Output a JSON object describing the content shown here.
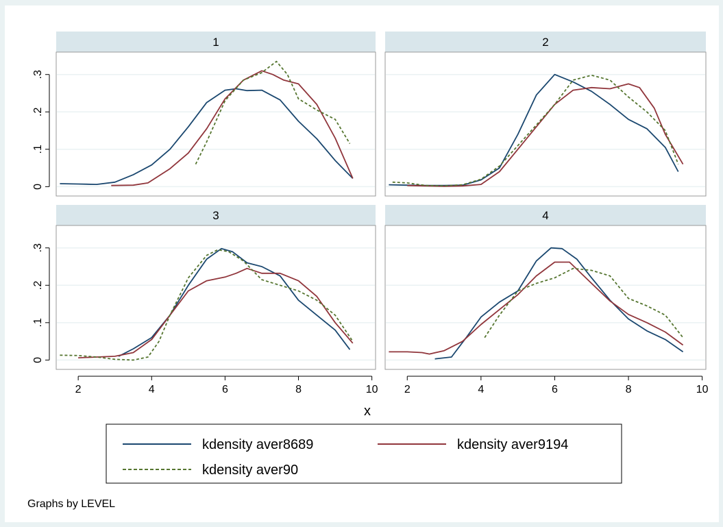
{
  "chart_data": {
    "type": "line",
    "panel_variable": "LEVEL",
    "xlabel": "x",
    "ylabel": "",
    "xlim": [
      1.4,
      10.1
    ],
    "ylim": [
      -0.025,
      0.36
    ],
    "x_ticks": [
      2,
      4,
      6,
      8,
      10
    ],
    "y_ticks": [
      0,
      0.1,
      0.2,
      0.3
    ],
    "y_tick_labels": [
      "0",
      ".1",
      ".2",
      ".3"
    ],
    "grid": true,
    "legend_position": "bottom",
    "note": "Graphs by LEVEL",
    "series_meta": [
      {
        "name": "kdensity aver8689",
        "color": "#1a476f",
        "dash": "solid"
      },
      {
        "name": "kdensity aver9194",
        "color": "#90353b",
        "dash": "solid"
      },
      {
        "name": "kdensity aver90",
        "color": "#55752f",
        "dash": "dashed"
      }
    ],
    "panels": [
      {
        "title": "1",
        "series": [
          {
            "name": "kdensity aver8689",
            "x": [
              1.5,
              2.0,
              2.5,
              3.0,
              3.5,
              4.0,
              4.5,
              5.0,
              5.5,
              6.0,
              6.3,
              6.6,
              7.0,
              7.5,
              8.0,
              8.5,
              9.0,
              9.48
            ],
            "y": [
              0.008,
              0.007,
              0.006,
              0.012,
              0.032,
              0.058,
              0.1,
              0.16,
              0.225,
              0.258,
              0.262,
              0.257,
              0.258,
              0.232,
              0.175,
              0.128,
              0.07,
              0.022
            ]
          },
          {
            "name": "kdensity aver9194",
            "x": [
              2.9,
              3.5,
              3.9,
              4.5,
              5.0,
              5.5,
              6.0,
              6.5,
              7.0,
              7.3,
              7.6,
              8.0,
              8.5,
              9.0,
              9.48
            ],
            "y": [
              0.003,
              0.004,
              0.01,
              0.048,
              0.09,
              0.155,
              0.235,
              0.285,
              0.31,
              0.3,
              0.285,
              0.275,
              0.22,
              0.13,
              0.022
            ]
          },
          {
            "name": "kdensity aver90",
            "x": [
              5.2,
              5.5,
              6.0,
              6.5,
              7.0,
              7.4,
              7.7,
              8.0,
              8.5,
              9.0,
              9.4
            ],
            "y": [
              0.06,
              0.12,
              0.23,
              0.285,
              0.305,
              0.335,
              0.3,
              0.235,
              0.205,
              0.18,
              0.115
            ]
          }
        ]
      },
      {
        "title": "2",
        "series": [
          {
            "name": "kdensity aver8689",
            "x": [
              1.5,
              2.0,
              2.5,
              3.0,
              3.5,
              4.0,
              4.5,
              5.0,
              5.5,
              6.0,
              6.5,
              7.0,
              7.5,
              8.0,
              8.5,
              9.0,
              9.35
            ],
            "y": [
              0.005,
              0.004,
              0.003,
              0.003,
              0.004,
              0.018,
              0.05,
              0.14,
              0.245,
              0.3,
              0.28,
              0.255,
              0.22,
              0.18,
              0.155,
              0.105,
              0.04
            ]
          },
          {
            "name": "kdensity aver9194",
            "x": [
              2.0,
              2.5,
              3.0,
              3.5,
              4.0,
              4.5,
              5.0,
              5.5,
              6.0,
              6.5,
              7.0,
              7.5,
              8.0,
              8.3,
              8.7,
              9.0,
              9.48
            ],
            "y": [
              0.003,
              0.002,
              0.001,
              0.002,
              0.006,
              0.04,
              0.1,
              0.16,
              0.22,
              0.258,
              0.265,
              0.262,
              0.275,
              0.265,
              0.21,
              0.14,
              0.06
            ]
          },
          {
            "name": "kdensity aver90",
            "x": [
              1.6,
              2.0,
              2.5,
              3.0,
              3.5,
              4.0,
              4.5,
              5.0,
              5.5,
              6.0,
              6.5,
              7.0,
              7.5,
              8.0,
              8.5,
              9.0,
              9.35
            ],
            "y": [
              0.012,
              0.01,
              0.003,
              0.002,
              0.005,
              0.02,
              0.055,
              0.11,
              0.165,
              0.22,
              0.285,
              0.298,
              0.285,
              0.24,
              0.2,
              0.15,
              0.06
            ]
          }
        ]
      },
      {
        "title": "3",
        "series": [
          {
            "name": "kdensity aver8689",
            "x": [
              3.1,
              3.5,
              4.0,
              4.5,
              5.0,
              5.5,
              5.9,
              6.2,
              6.6,
              7.0,
              7.5,
              8.0,
              8.5,
              9.0,
              9.4
            ],
            "y": [
              0.01,
              0.03,
              0.06,
              0.12,
              0.2,
              0.27,
              0.298,
              0.29,
              0.26,
              0.25,
              0.225,
              0.16,
              0.12,
              0.08,
              0.028
            ]
          },
          {
            "name": "kdensity aver9194",
            "x": [
              2.0,
              2.5,
              3.0,
              3.5,
              4.0,
              4.5,
              5.0,
              5.5,
              6.0,
              6.3,
              6.6,
              7.0,
              7.5,
              8.0,
              8.5,
              9.0,
              9.48
            ],
            "y": [
              0.006,
              0.008,
              0.01,
              0.02,
              0.055,
              0.12,
              0.185,
              0.212,
              0.222,
              0.232,
              0.245,
              0.232,
              0.232,
              0.212,
              0.17,
              0.1,
              0.045
            ]
          },
          {
            "name": "kdensity aver90",
            "x": [
              1.5,
              2.0,
              2.5,
              3.0,
              3.5,
              3.9,
              4.2,
              4.5,
              5.0,
              5.5,
              5.8,
              6.1,
              6.5,
              7.0,
              7.5,
              8.0,
              8.5,
              9.0,
              9.48
            ],
            "y": [
              0.013,
              0.012,
              0.008,
              0.002,
              0.0,
              0.008,
              0.05,
              0.12,
              0.22,
              0.28,
              0.295,
              0.29,
              0.265,
              0.215,
              0.2,
              0.185,
              0.16,
              0.12,
              0.05
            ]
          }
        ]
      },
      {
        "title": "4",
        "series": [
          {
            "name": "kdensity aver8689",
            "x": [
              2.75,
              3.2,
              3.6,
              4.0,
              4.5,
              5.0,
              5.5,
              5.9,
              6.2,
              6.6,
              7.0,
              7.5,
              8.0,
              8.5,
              9.0,
              9.48
            ],
            "y": [
              0.003,
              0.008,
              0.06,
              0.115,
              0.155,
              0.185,
              0.265,
              0.3,
              0.298,
              0.27,
              0.22,
              0.16,
              0.11,
              0.078,
              0.055,
              0.022
            ]
          },
          {
            "name": "kdensity aver9194",
            "x": [
              1.5,
              2.0,
              2.4,
              2.6,
              3.0,
              3.5,
              4.0,
              4.5,
              5.0,
              5.5,
              6.0,
              6.4,
              7.0,
              7.5,
              8.0,
              8.5,
              9.0,
              9.48
            ],
            "y": [
              0.022,
              0.022,
              0.02,
              0.016,
              0.025,
              0.05,
              0.095,
              0.135,
              0.175,
              0.225,
              0.262,
              0.262,
              0.205,
              0.158,
              0.122,
              0.1,
              0.075,
              0.04
            ]
          },
          {
            "name": "kdensity aver90",
            "x": [
              4.1,
              4.5,
              5.0,
              5.5,
              6.0,
              6.5,
              7.0,
              7.5,
              8.0,
              8.5,
              9.0,
              9.48
            ],
            "y": [
              0.06,
              0.12,
              0.185,
              0.205,
              0.22,
              0.245,
              0.24,
              0.225,
              0.165,
              0.145,
              0.12,
              0.06
            ]
          }
        ]
      }
    ]
  }
}
